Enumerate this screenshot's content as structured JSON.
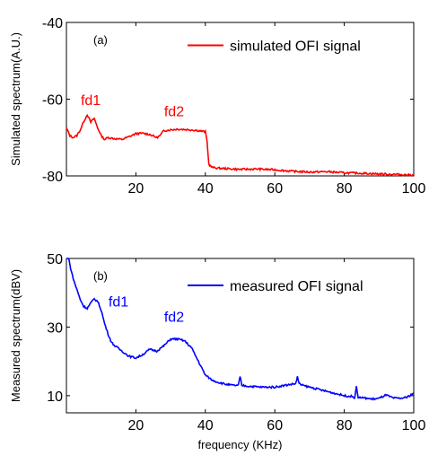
{
  "chart_data": [
    {
      "type": "line",
      "panel_label": "(a)",
      "xlabel": "",
      "ylabel": "Simulated spectrum(A.U.)",
      "xlim": [
        0,
        100
      ],
      "ylim": [
        -80,
        -40
      ],
      "xticks": [
        20,
        40,
        60,
        80,
        100
      ],
      "yticks": [
        -40,
        -60,
        -80
      ],
      "color": "#ff0000",
      "legend_position": "top-right",
      "series": [
        {
          "name": "simulated OFI signal",
          "x": [
            0,
            1,
            2,
            3,
            4,
            5,
            6,
            7,
            8,
            9,
            10,
            11,
            12,
            14,
            16,
            18,
            20,
            22,
            24,
            26,
            27,
            28,
            30,
            32,
            34,
            36,
            38,
            40,
            40.5,
            41,
            42,
            44,
            46,
            50,
            55,
            60,
            65,
            70,
            75,
            80,
            85,
            90,
            95,
            100
          ],
          "y": [
            -67.5,
            -69.5,
            -70.0,
            -69.5,
            -68.0,
            -65.8,
            -64.0,
            -66.0,
            -65.0,
            -67.5,
            -69.5,
            -70.5,
            -70.0,
            -70.3,
            -70.5,
            -69.8,
            -69.0,
            -68.9,
            -69.2,
            -70.0,
            -69.5,
            -68.2,
            -68.0,
            -67.8,
            -67.9,
            -68.0,
            -68.2,
            -68.5,
            -71.0,
            -77.0,
            -77.8,
            -78.0,
            -78.1,
            -78.3,
            -78.2,
            -78.4,
            -78.8,
            -79.0,
            -78.9,
            -79.2,
            -79.3,
            -79.5,
            -79.6,
            -79.8
          ]
        }
      ],
      "annotations": [
        {
          "text": "fd1",
          "x": 7,
          "y": -61.5
        },
        {
          "text": "fd2",
          "x": 31,
          "y": -64.5
        }
      ]
    },
    {
      "type": "line",
      "panel_label": "(b)",
      "xlabel": "frequency (KHz)",
      "ylabel": "Measured spectrum(dBV)",
      "xlim": [
        0,
        100
      ],
      "ylim": [
        5,
        50
      ],
      "xticks": [
        20,
        40,
        60,
        80,
        100
      ],
      "yticks": [
        50,
        30,
        10
      ],
      "color": "#0000ff",
      "legend_position": "top-right",
      "series": [
        {
          "name": "measured OFI signal",
          "x": [
            0,
            1,
            2,
            3,
            4,
            5,
            6,
            7,
            8,
            9,
            10,
            11,
            12,
            13,
            14,
            16,
            18,
            20,
            22,
            24,
            26,
            28,
            30,
            32,
            34,
            36,
            38,
            40,
            42,
            44,
            46,
            48,
            49.5,
            50,
            50.5,
            52,
            56,
            60,
            64,
            66,
            66.5,
            67,
            68,
            72,
            76,
            80,
            82,
            83,
            83.5,
            84,
            86,
            88,
            90,
            92,
            94,
            96,
            98,
            100
          ],
          "y": [
            55,
            48,
            44,
            41,
            38,
            36,
            35.5,
            37,
            38.2,
            37.5,
            35,
            31,
            28,
            25.5,
            24.5,
            23,
            21.5,
            21,
            22,
            23.5,
            23,
            24.5,
            26.5,
            26.5,
            26,
            24,
            20,
            16,
            14.5,
            13.8,
            13.3,
            13,
            13,
            15.5,
            13,
            12.8,
            12.5,
            12.5,
            13.2,
            13.5,
            15.5,
            13.5,
            13,
            12,
            11,
            10,
            9.8,
            9.5,
            12.5,
            9.5,
            9.3,
            9.0,
            9.2,
            10.2,
            9.3,
            9.2,
            9.5,
            10.8
          ]
        }
      ],
      "annotations": [
        {
          "text": "fd1",
          "x": 15,
          "y": 36
        },
        {
          "text": "fd2",
          "x": 31,
          "y": 31.5
        }
      ]
    }
  ]
}
